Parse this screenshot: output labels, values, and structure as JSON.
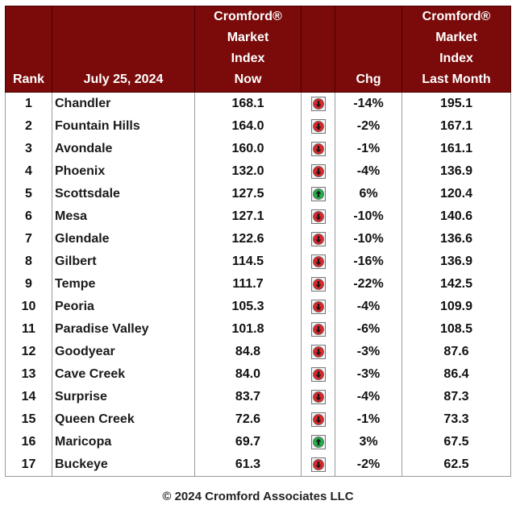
{
  "header": {
    "rank": "Rank",
    "date": "July 25, 2024",
    "now_line1": "Cromford®",
    "now_line2": "Market",
    "now_line3": "Index",
    "now_line4": "Now",
    "chg": "Chg",
    "last_line1": "Cromford®",
    "last_line2": "Market",
    "last_line3": "Index",
    "last_line4": "Last Month"
  },
  "colors": {
    "header_bg": "#7b0a0a",
    "down": "#e0262b",
    "up": "#22b14c"
  },
  "rows": [
    {
      "rank": "1",
      "city": "Chandler",
      "now": "168.1",
      "dir": "down",
      "chg": "-14%",
      "last": "195.1"
    },
    {
      "rank": "2",
      "city": "Fountain Hills",
      "now": "164.0",
      "dir": "down",
      "chg": "-2%",
      "last": "167.1"
    },
    {
      "rank": "3",
      "city": "Avondale",
      "now": "160.0",
      "dir": "down",
      "chg": "-1%",
      "last": "161.1"
    },
    {
      "rank": "4",
      "city": "Phoenix",
      "now": "132.0",
      "dir": "down",
      "chg": "-4%",
      "last": "136.9"
    },
    {
      "rank": "5",
      "city": "Scottsdale",
      "now": "127.5",
      "dir": "up",
      "chg": "6%",
      "last": "120.4"
    },
    {
      "rank": "6",
      "city": "Mesa",
      "now": "127.1",
      "dir": "down",
      "chg": "-10%",
      "last": "140.6"
    },
    {
      "rank": "7",
      "city": "Glendale",
      "now": "122.6",
      "dir": "down",
      "chg": "-10%",
      "last": "136.6"
    },
    {
      "rank": "8",
      "city": "Gilbert",
      "now": "114.5",
      "dir": "down",
      "chg": "-16%",
      "last": "136.9"
    },
    {
      "rank": "9",
      "city": "Tempe",
      "now": "111.7",
      "dir": "down",
      "chg": "-22%",
      "last": "142.5"
    },
    {
      "rank": "10",
      "city": "Peoria",
      "now": "105.3",
      "dir": "down",
      "chg": "-4%",
      "last": "109.9"
    },
    {
      "rank": "11",
      "city": "Paradise Valley",
      "now": "101.8",
      "dir": "down",
      "chg": "-6%",
      "last": "108.5"
    },
    {
      "rank": "12",
      "city": "Goodyear",
      "now": "84.8",
      "dir": "down",
      "chg": "-3%",
      "last": "87.6"
    },
    {
      "rank": "13",
      "city": "Cave Creek",
      "now": "84.0",
      "dir": "down",
      "chg": "-3%",
      "last": "86.4"
    },
    {
      "rank": "14",
      "city": "Surprise",
      "now": "83.7",
      "dir": "down",
      "chg": "-4%",
      "last": "87.3"
    },
    {
      "rank": "15",
      "city": "Queen Creek",
      "now": "72.6",
      "dir": "down",
      "chg": "-1%",
      "last": "73.3"
    },
    {
      "rank": "16",
      "city": "Maricopa",
      "now": "69.7",
      "dir": "up",
      "chg": "3%",
      "last": "67.5"
    },
    {
      "rank": "17",
      "city": "Buckeye",
      "now": "61.3",
      "dir": "down",
      "chg": "-2%",
      "last": "62.5"
    }
  ],
  "footer": "© 2024 Cromford Associates LLC"
}
